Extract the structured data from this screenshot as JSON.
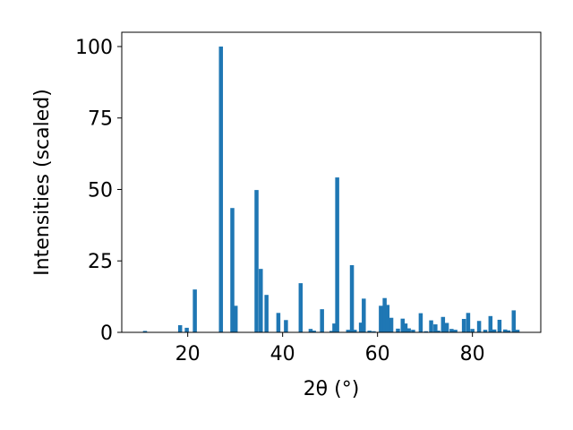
{
  "chart_data": {
    "type": "bar",
    "xlabel": "2θ (°)",
    "ylabel": "Intensities (scaled)",
    "xlim": [
      6.1,
      94.4
    ],
    "ylim": [
      0,
      105
    ],
    "xticks": [
      20,
      40,
      60,
      80
    ],
    "yticks": [
      0,
      25,
      50,
      75,
      100
    ],
    "bar_color": "#1f77b4",
    "bar_width": 0.85,
    "grid": false,
    "x": [
      11.0,
      18.4,
      19.8,
      21.5,
      27.0,
      29.4,
      30.1,
      34.5,
      35.4,
      36.6,
      39.1,
      40.7,
      43.8,
      45.9,
      46.6,
      48.3,
      50.3,
      50.9,
      51.5,
      53.8,
      54.6,
      55.2,
      56.5,
      57.1,
      58.3,
      59.2,
      60.7,
      61.5,
      62.1,
      62.9,
      64.3,
      65.3,
      65.9,
      66.6,
      67.5,
      69.1,
      70.2,
      71.3,
      72.2,
      72.8,
      73.8,
      74.6,
      75.6,
      76.4,
      78.2,
      79.1,
      80.0,
      81.4,
      82.7,
      83.8,
      84.6,
      85.7,
      86.9,
      87.6,
      88.7,
      89.5
    ],
    "values": [
      0.5,
      2.5,
      1.6,
      15.0,
      100.0,
      43.5,
      9.3,
      49.8,
      22.2,
      13.1,
      6.8,
      4.3,
      17.2,
      1.2,
      0.6,
      8.1,
      0.5,
      3.1,
      54.2,
      0.9,
      23.5,
      0.9,
      3.4,
      11.8,
      0.6,
      0.4,
      9.3,
      12.0,
      9.6,
      5.1,
      1.3,
      4.8,
      3.1,
      1.4,
      0.9,
      6.7,
      0.4,
      4.2,
      2.8,
      0.6,
      5.4,
      3.3,
      1.2,
      0.9,
      4.7,
      6.8,
      1.2,
      4.0,
      0.9,
      5.7,
      1.0,
      4.4,
      1.0,
      0.7,
      7.7,
      0.9
    ]
  }
}
